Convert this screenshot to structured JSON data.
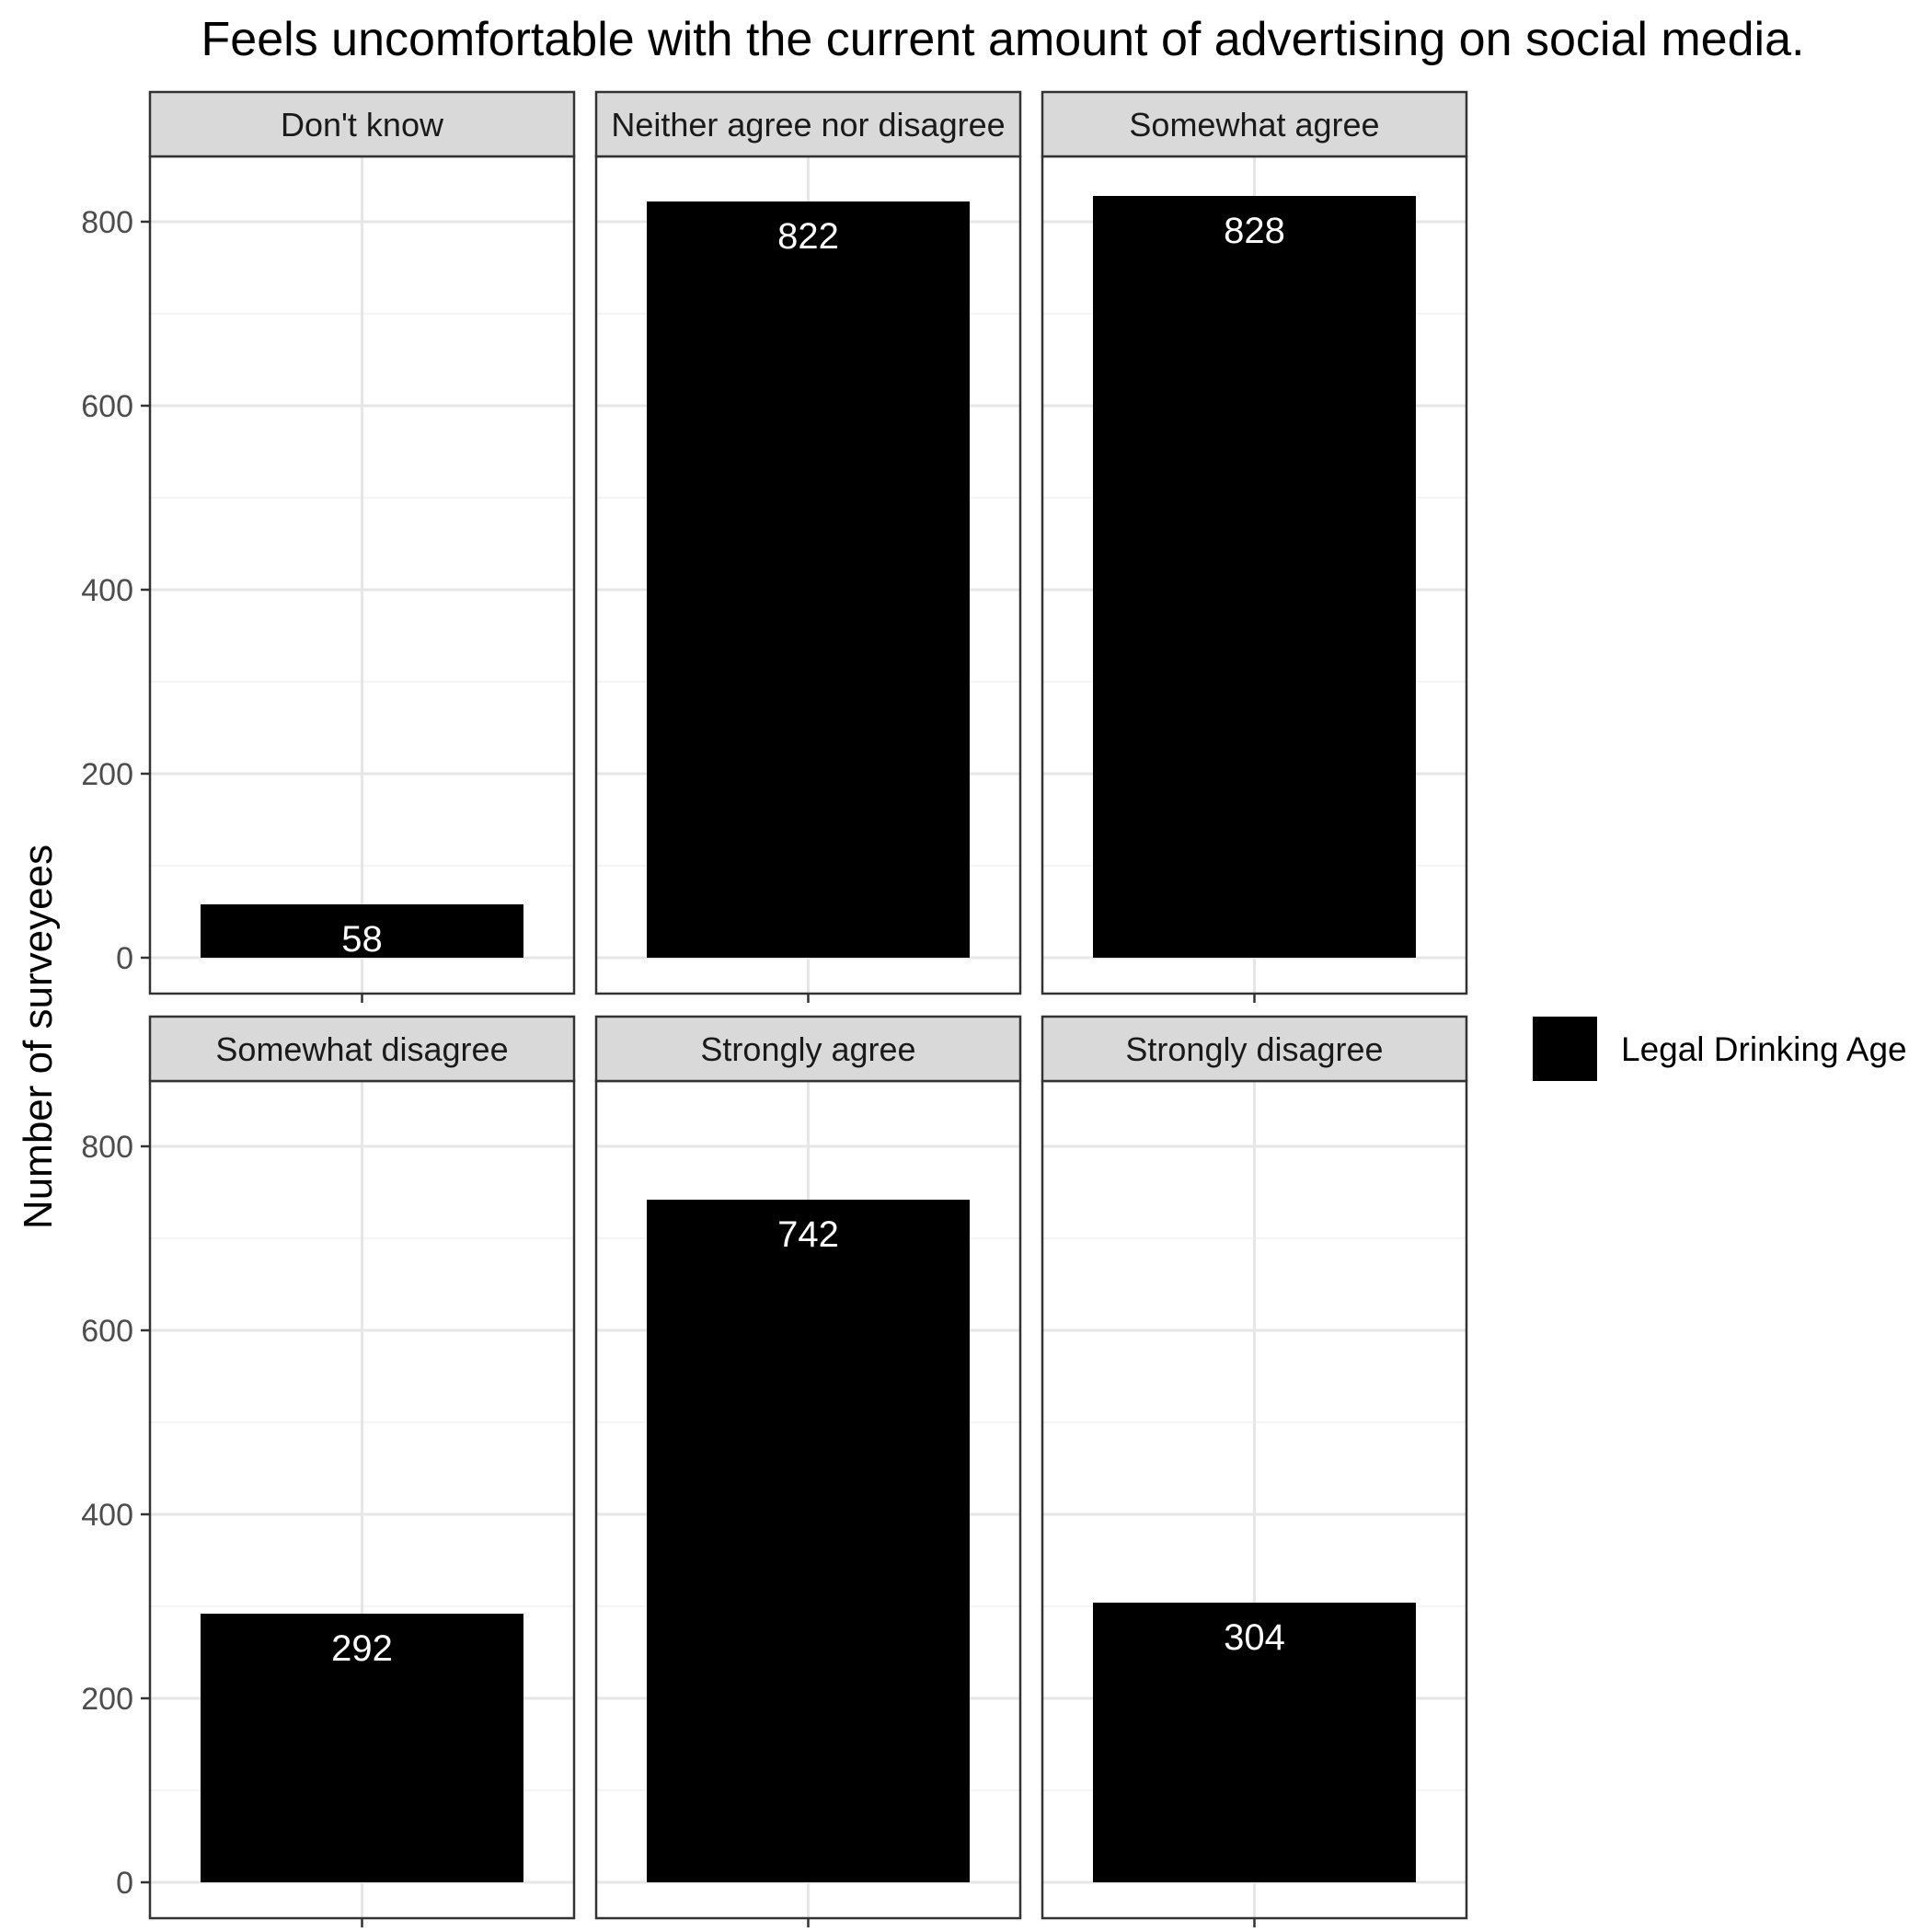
{
  "chart_data": {
    "type": "bar",
    "title": "Feels uncomfortable with the current amount of advertising on social media.",
    "xlabel": "",
    "ylabel": "Number of surveyees",
    "ylim": [
      0,
      900
    ],
    "yticks": [
      0,
      200,
      400,
      600,
      800
    ],
    "grid": true,
    "legend_position": "right",
    "facets": [
      {
        "label": "Don't know",
        "value": 58
      },
      {
        "label": "Neither agree nor disagree",
        "value": 822
      },
      {
        "label": "Somewhat agree",
        "value": 828
      },
      {
        "label": "Somewhat disagree",
        "value": 292
      },
      {
        "label": "Strongly agree",
        "value": 742
      },
      {
        "label": "Strongly disagree",
        "value": 304
      }
    ],
    "series": [
      {
        "name": "Legal Drinking Age",
        "color": "#000000"
      }
    ]
  }
}
